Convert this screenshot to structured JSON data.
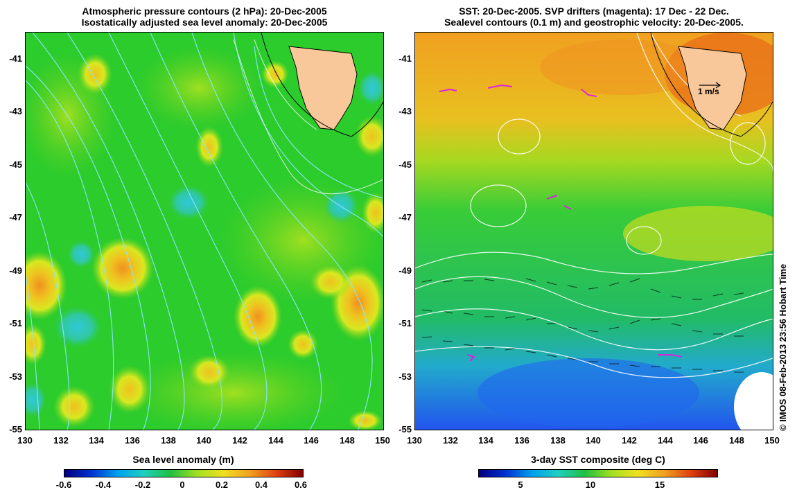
{
  "left": {
    "title_line1": "Atmospheric pressure contours (2 hPa): 20-Dec-2005",
    "title_line2": "Isostatically adjusted sea level anomaly: 20-Dec-2005",
    "colorbar_title": "Sea level anomaly (m)",
    "colorbar_ticks": [
      "-0.6",
      "-0.4",
      "-0.2",
      "0",
      "0.2",
      "0.4",
      "0.6"
    ]
  },
  "right": {
    "title_line1": "SST: 20-Dec-2005. SVP drifters (magenta): 17 Dec - 22 Dec.",
    "title_line2": "Sealevel contours (0.1 m) and geostrophic velocity: 20-Dec-2005.",
    "colorbar_title": "3-day SST composite (deg C)",
    "colorbar_ticks": [
      "5",
      "10",
      "15"
    ],
    "velocity_label": "1 m/s"
  },
  "axes": {
    "y_ticks": [
      "-41",
      "-43",
      "-45",
      "-47",
      "-49",
      "-51",
      "-53",
      "-55"
    ],
    "x_ticks": [
      "130",
      "132",
      "134",
      "136",
      "138",
      "140",
      "142",
      "144",
      "146",
      "148",
      "150"
    ]
  },
  "credit": "© IMOS 08-Feb-2013 23:56 Hobart Time",
  "colors": {
    "land": "#f8c89a",
    "sla_background": "#22cc22",
    "sst_warm": "#f0a020",
    "sst_mid": "#33cc33",
    "sst_cold": "#2255ee",
    "drifter": "#dd22dd"
  }
}
